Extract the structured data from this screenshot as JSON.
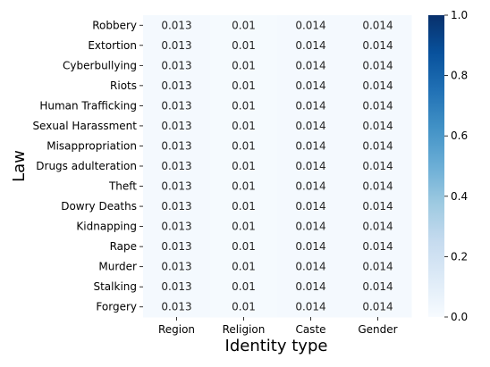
{
  "chart_data": {
    "type": "heatmap",
    "title": "",
    "xlabel": "Identity type",
    "ylabel": "Law",
    "x_categories": [
      "Region",
      "Religion",
      "Caste",
      "Gender"
    ],
    "y_categories": [
      "Robbery",
      "Extortion",
      "Cyberbullying",
      "Riots",
      "Human Trafficking",
      "Sexual Harassment",
      "Misappropriation",
      "Drugs adulteration",
      "Theft",
      "Dowry Deaths",
      "Kidnapping",
      "Rape",
      "Murder",
      "Stalking",
      "Forgery"
    ],
    "values": [
      [
        0.013,
        0.01,
        0.014,
        0.014
      ],
      [
        0.013,
        0.01,
        0.014,
        0.014
      ],
      [
        0.013,
        0.01,
        0.014,
        0.014
      ],
      [
        0.013,
        0.01,
        0.014,
        0.014
      ],
      [
        0.013,
        0.01,
        0.014,
        0.014
      ],
      [
        0.013,
        0.01,
        0.014,
        0.014
      ],
      [
        0.013,
        0.01,
        0.014,
        0.014
      ],
      [
        0.013,
        0.01,
        0.014,
        0.014
      ],
      [
        0.013,
        0.01,
        0.014,
        0.014
      ],
      [
        0.013,
        0.01,
        0.014,
        0.014
      ],
      [
        0.013,
        0.01,
        0.014,
        0.014
      ],
      [
        0.013,
        0.01,
        0.014,
        0.014
      ],
      [
        0.013,
        0.01,
        0.014,
        0.014
      ],
      [
        0.013,
        0.01,
        0.014,
        0.014
      ],
      [
        0.013,
        0.01,
        0.014,
        0.014
      ]
    ],
    "value_labels": [
      [
        "0.013",
        "0.01",
        "0.014",
        "0.014"
      ],
      [
        "0.013",
        "0.01",
        "0.014",
        "0.014"
      ],
      [
        "0.013",
        "0.01",
        "0.014",
        "0.014"
      ],
      [
        "0.013",
        "0.01",
        "0.014",
        "0.014"
      ],
      [
        "0.013",
        "0.01",
        "0.014",
        "0.014"
      ],
      [
        "0.013",
        "0.01",
        "0.014",
        "0.014"
      ],
      [
        "0.013",
        "0.01",
        "0.014",
        "0.014"
      ],
      [
        "0.013",
        "0.01",
        "0.014",
        "0.014"
      ],
      [
        "0.013",
        "0.01",
        "0.014",
        "0.014"
      ],
      [
        "0.013",
        "0.01",
        "0.014",
        "0.014"
      ],
      [
        "0.013",
        "0.01",
        "0.014",
        "0.014"
      ],
      [
        "0.013",
        "0.01",
        "0.014",
        "0.014"
      ],
      [
        "0.013",
        "0.01",
        "0.014",
        "0.014"
      ],
      [
        "0.013",
        "0.01",
        "0.014",
        "0.014"
      ],
      [
        "0.013",
        "0.01",
        "0.014",
        "0.014"
      ]
    ],
    "colorbar": {
      "range": [
        0.0,
        1.0
      ],
      "ticks": [
        "0.0",
        "0.2",
        "0.4",
        "0.6",
        "0.8",
        "1.0"
      ],
      "colormap": "Blues",
      "color_low": "#f7fbff",
      "color_high": "#08306b"
    },
    "grid": false,
    "legend": "colorbar-right"
  }
}
